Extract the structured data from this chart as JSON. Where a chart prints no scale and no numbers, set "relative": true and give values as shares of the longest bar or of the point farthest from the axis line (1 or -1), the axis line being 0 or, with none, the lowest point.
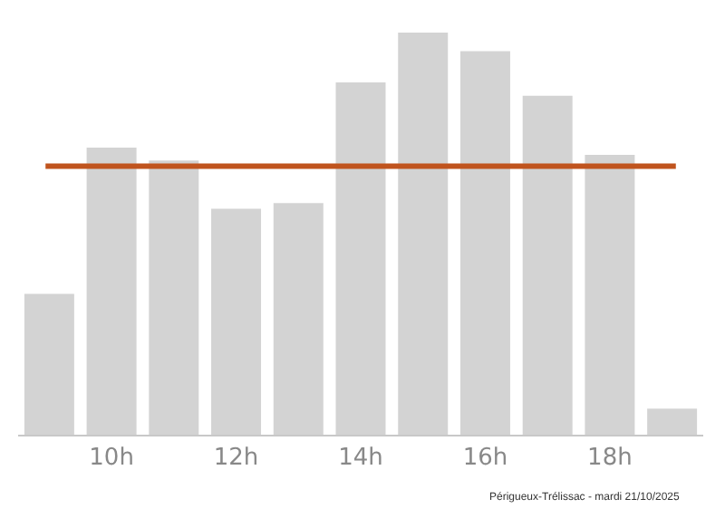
{
  "chart_data": {
    "type": "bar",
    "relative": true,
    "categories": [
      null,
      "10h",
      null,
      "12h",
      null,
      "14h",
      null,
      "16h",
      null,
      "18h",
      null
    ],
    "values": [
      0.35,
      0.714,
      0.682,
      0.562,
      0.576,
      0.876,
      1,
      0.954,
      0.843,
      0.696,
      0.065
    ],
    "color": "#d3d3d3",
    "ref_lines": [
      {
        "axis": "y",
        "value": 0.668,
        "color": "#c0541e"
      }
    ],
    "annotations": [
      "Périgueux-Trélissac - mardi 21/10/2025"
    ]
  }
}
